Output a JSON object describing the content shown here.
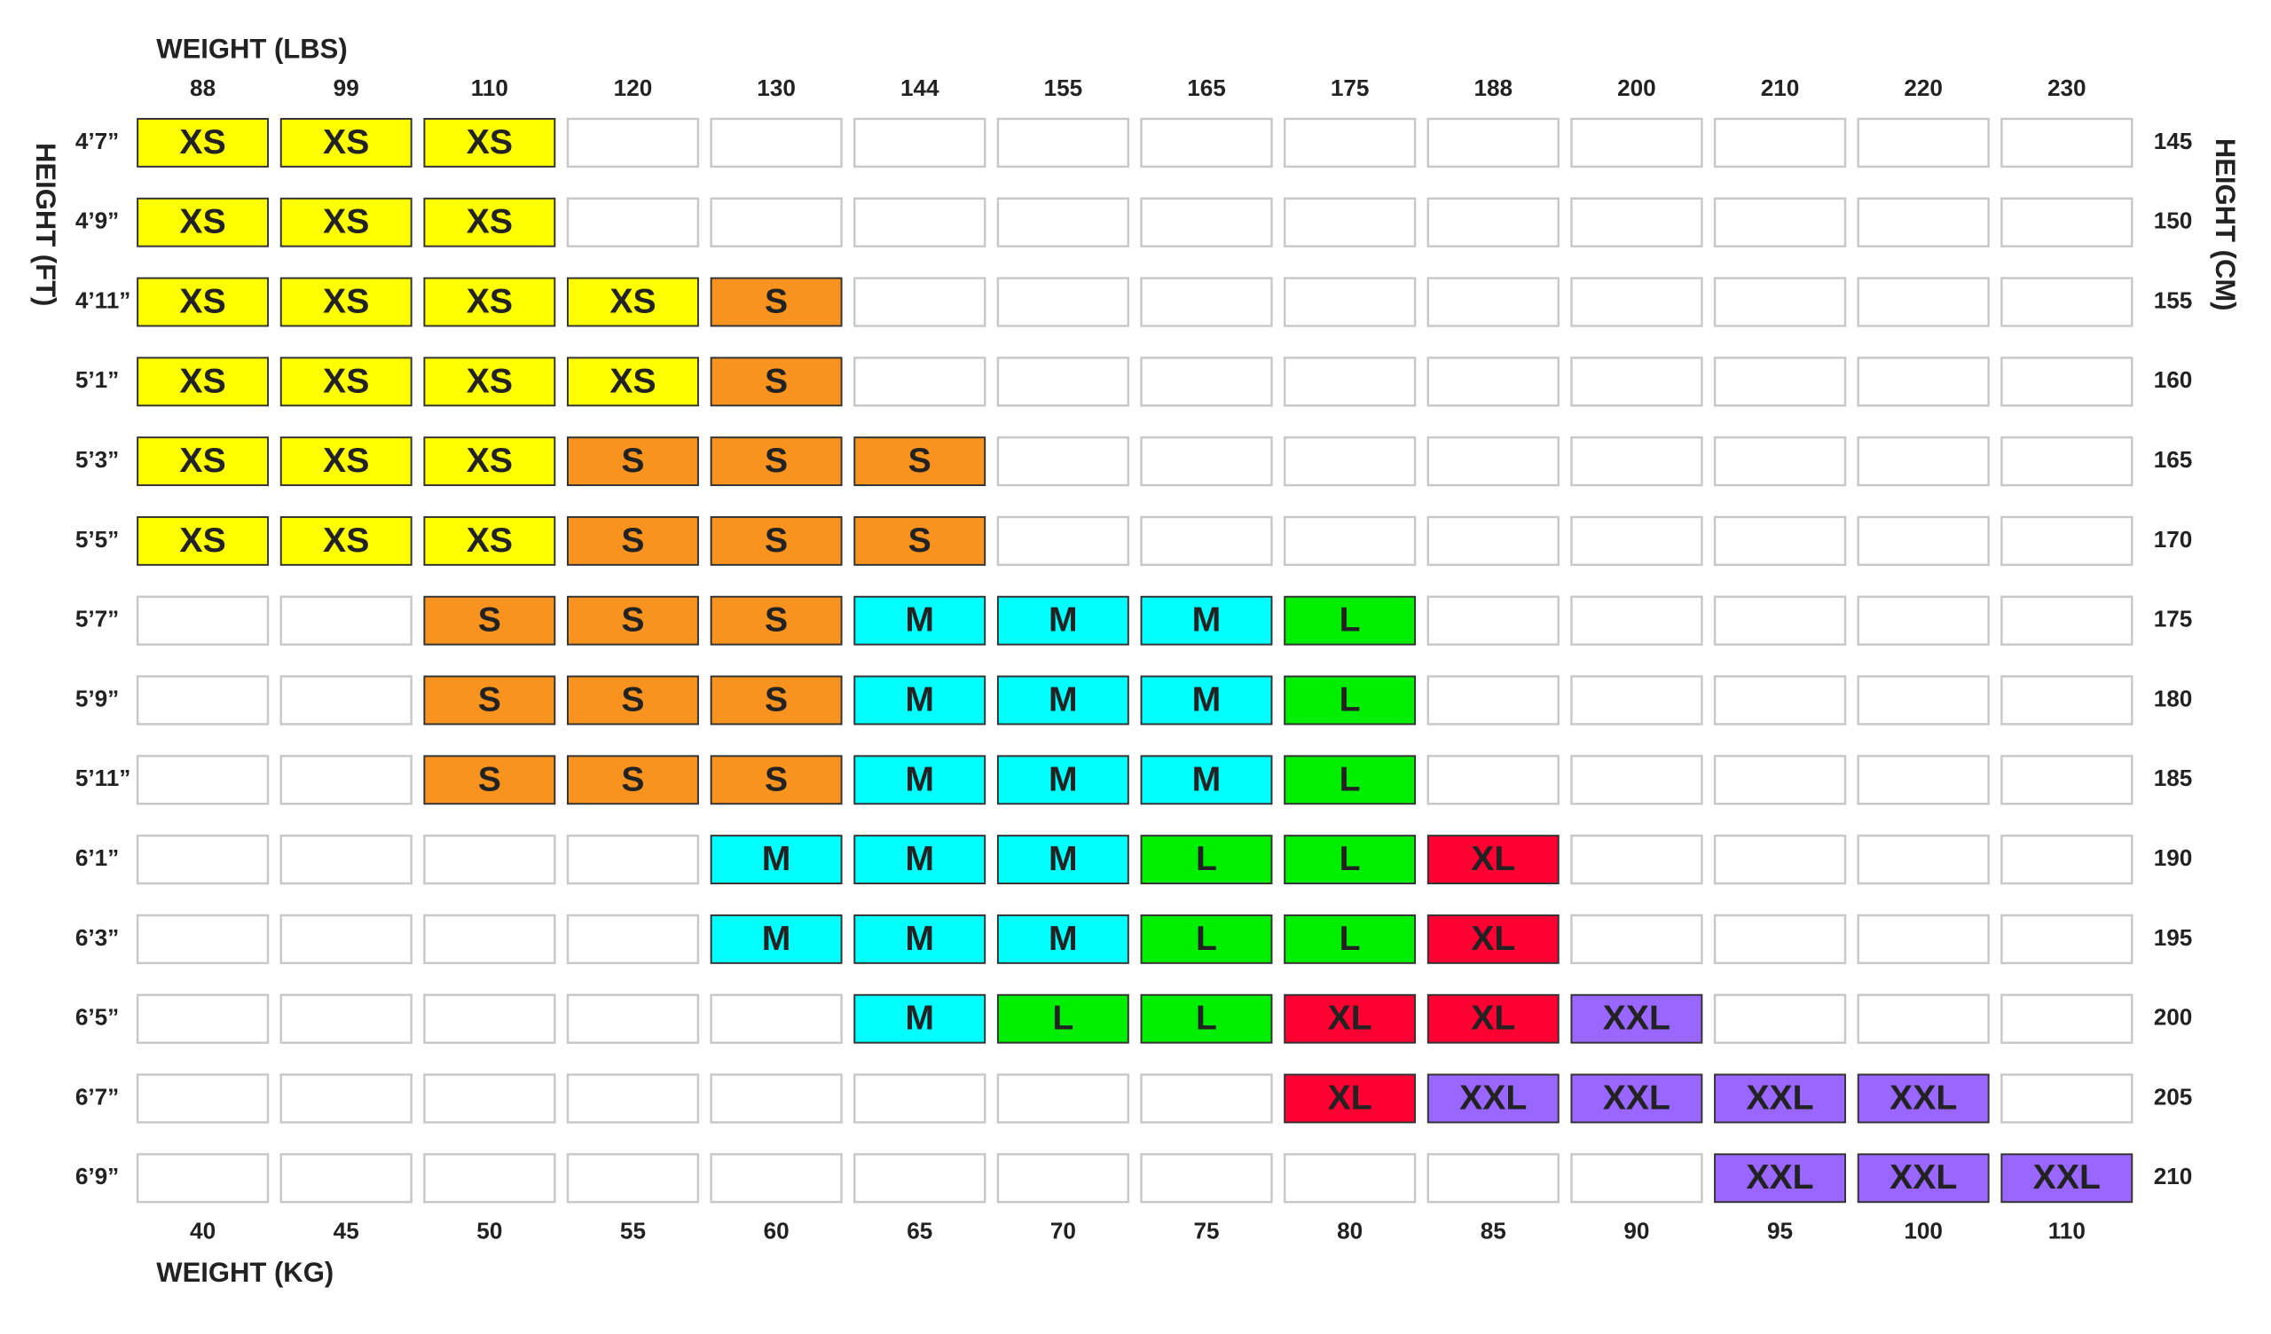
{
  "weight_lbs_title": "WEIGHT (LBS)",
  "weight_kg_title": "WEIGHT (KG)",
  "height_ft_title": "HEIGHT (FT)",
  "height_cm_title": "HEIGHT (CM)",
  "weight_lbs": [
    "88",
    "99",
    "110",
    "120",
    "130",
    "144",
    "155",
    "165",
    "175",
    "188",
    "200",
    "210",
    "220",
    "230"
  ],
  "weight_kg": [
    "40",
    "45",
    "50",
    "55",
    "60",
    "65",
    "70",
    "75",
    "80",
    "85",
    "90",
    "95",
    "100",
    "110"
  ],
  "height_ft": [
    "4’7”",
    "4’9”",
    "4’11”",
    "5’1”",
    "5’3”",
    "5’5”",
    "5’7”",
    "5’9”",
    "5’11”",
    "6’1”",
    "6’3”",
    "6’5”",
    "6’7”",
    "6’9”"
  ],
  "height_cm": [
    "145",
    "150",
    "155",
    "160",
    "165",
    "170",
    "175",
    "180",
    "185",
    "190",
    "195",
    "200",
    "205",
    "210"
  ],
  "size_colors": {
    "XS": "#ffff00",
    "S": "#f7931e",
    "M": "#00ffff",
    "L": "#00ee00",
    "XL": "#ff0033",
    "XXL": "#9966ff"
  },
  "grid": {
    "rows": [
      [
        "XS",
        "XS",
        "XS",
        null,
        null,
        null,
        null,
        null,
        null,
        null,
        null,
        null,
        null,
        null
      ],
      [
        "XS",
        "XS",
        "XS",
        null,
        null,
        null,
        null,
        null,
        null,
        null,
        null,
        null,
        null,
        null
      ],
      [
        "XS",
        "XS",
        "XS",
        "XS",
        "S",
        null,
        null,
        null,
        null,
        null,
        null,
        null,
        null,
        null
      ],
      [
        "XS",
        "XS",
        "XS",
        "XS",
        "S",
        null,
        null,
        null,
        null,
        null,
        null,
        null,
        null,
        null
      ],
      [
        "XS",
        "XS",
        "XS",
        "S",
        "S",
        "S",
        null,
        null,
        null,
        null,
        null,
        null,
        null,
        null
      ],
      [
        "XS",
        "XS",
        "XS",
        "S",
        "S",
        "S",
        null,
        null,
        null,
        null,
        null,
        null,
        null,
        null
      ],
      [
        null,
        null,
        "S",
        "S",
        "S",
        "M",
        "M",
        "M",
        "L",
        null,
        null,
        null,
        null,
        null
      ],
      [
        null,
        null,
        "S",
        "S",
        "S",
        "M",
        "M",
        "M",
        "L",
        null,
        null,
        null,
        null,
        null
      ],
      [
        null,
        null,
        "S",
        "S",
        "S",
        "M",
        "M",
        "M",
        "L",
        null,
        null,
        null,
        null,
        null
      ],
      [
        null,
        null,
        null,
        null,
        "M",
        "M",
        "M",
        "L",
        "L",
        "XL",
        null,
        null,
        null,
        null
      ],
      [
        null,
        null,
        null,
        null,
        "M",
        "M",
        "M",
        "L",
        "L",
        "XL",
        null,
        null,
        null,
        null
      ],
      [
        null,
        null,
        null,
        null,
        null,
        "M",
        "L",
        "L",
        "XL",
        "XL",
        "XXL",
        null,
        null,
        null
      ],
      [
        null,
        null,
        null,
        null,
        null,
        null,
        null,
        null,
        "XL",
        "XXL",
        "XXL",
        "XXL",
        "XXL",
        null
      ],
      [
        null,
        null,
        null,
        null,
        null,
        null,
        null,
        null,
        null,
        null,
        null,
        "XXL",
        "XXL",
        "XXL"
      ]
    ]
  }
}
